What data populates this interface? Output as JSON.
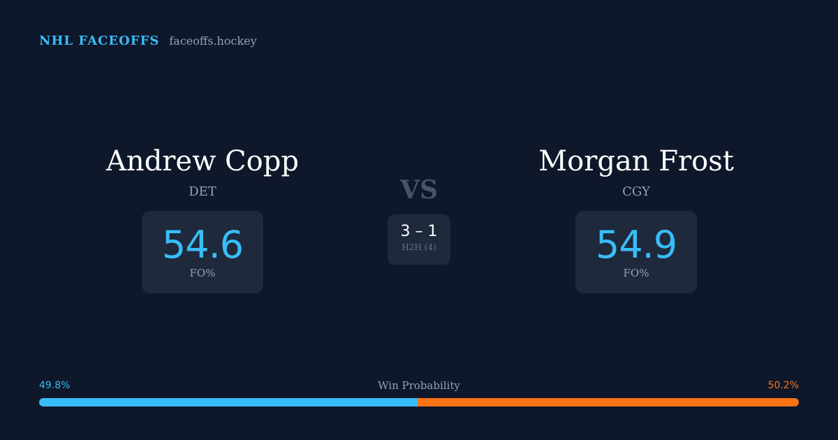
{
  "brand": {
    "name": "NHL FACEOFFS",
    "site": "faceoffs.hockey"
  },
  "players": [
    {
      "name": "Andrew Copp",
      "team": "DET",
      "stat_value": "54.6",
      "stat_label": "FO%"
    },
    {
      "name": "Morgan Frost",
      "team": "CGY",
      "stat_value": "54.9",
      "stat_label": "FO%"
    }
  ],
  "vs_label": "VS",
  "head_to_head": {
    "score": "3 – 1",
    "label": "H2H (4)"
  },
  "win_probability": {
    "title": "Win Probability",
    "left_text": "49.8%",
    "right_text": "50.2%",
    "left_value": 49.8,
    "right_value": 50.2,
    "left_color": "#38bdf8",
    "right_color": "#f97316"
  },
  "colors": {
    "background": "#0f172a",
    "card": "#1e293b",
    "accent": "#38bdf8",
    "accent_secondary": "#f97316",
    "muted": "#94a3b8"
  }
}
